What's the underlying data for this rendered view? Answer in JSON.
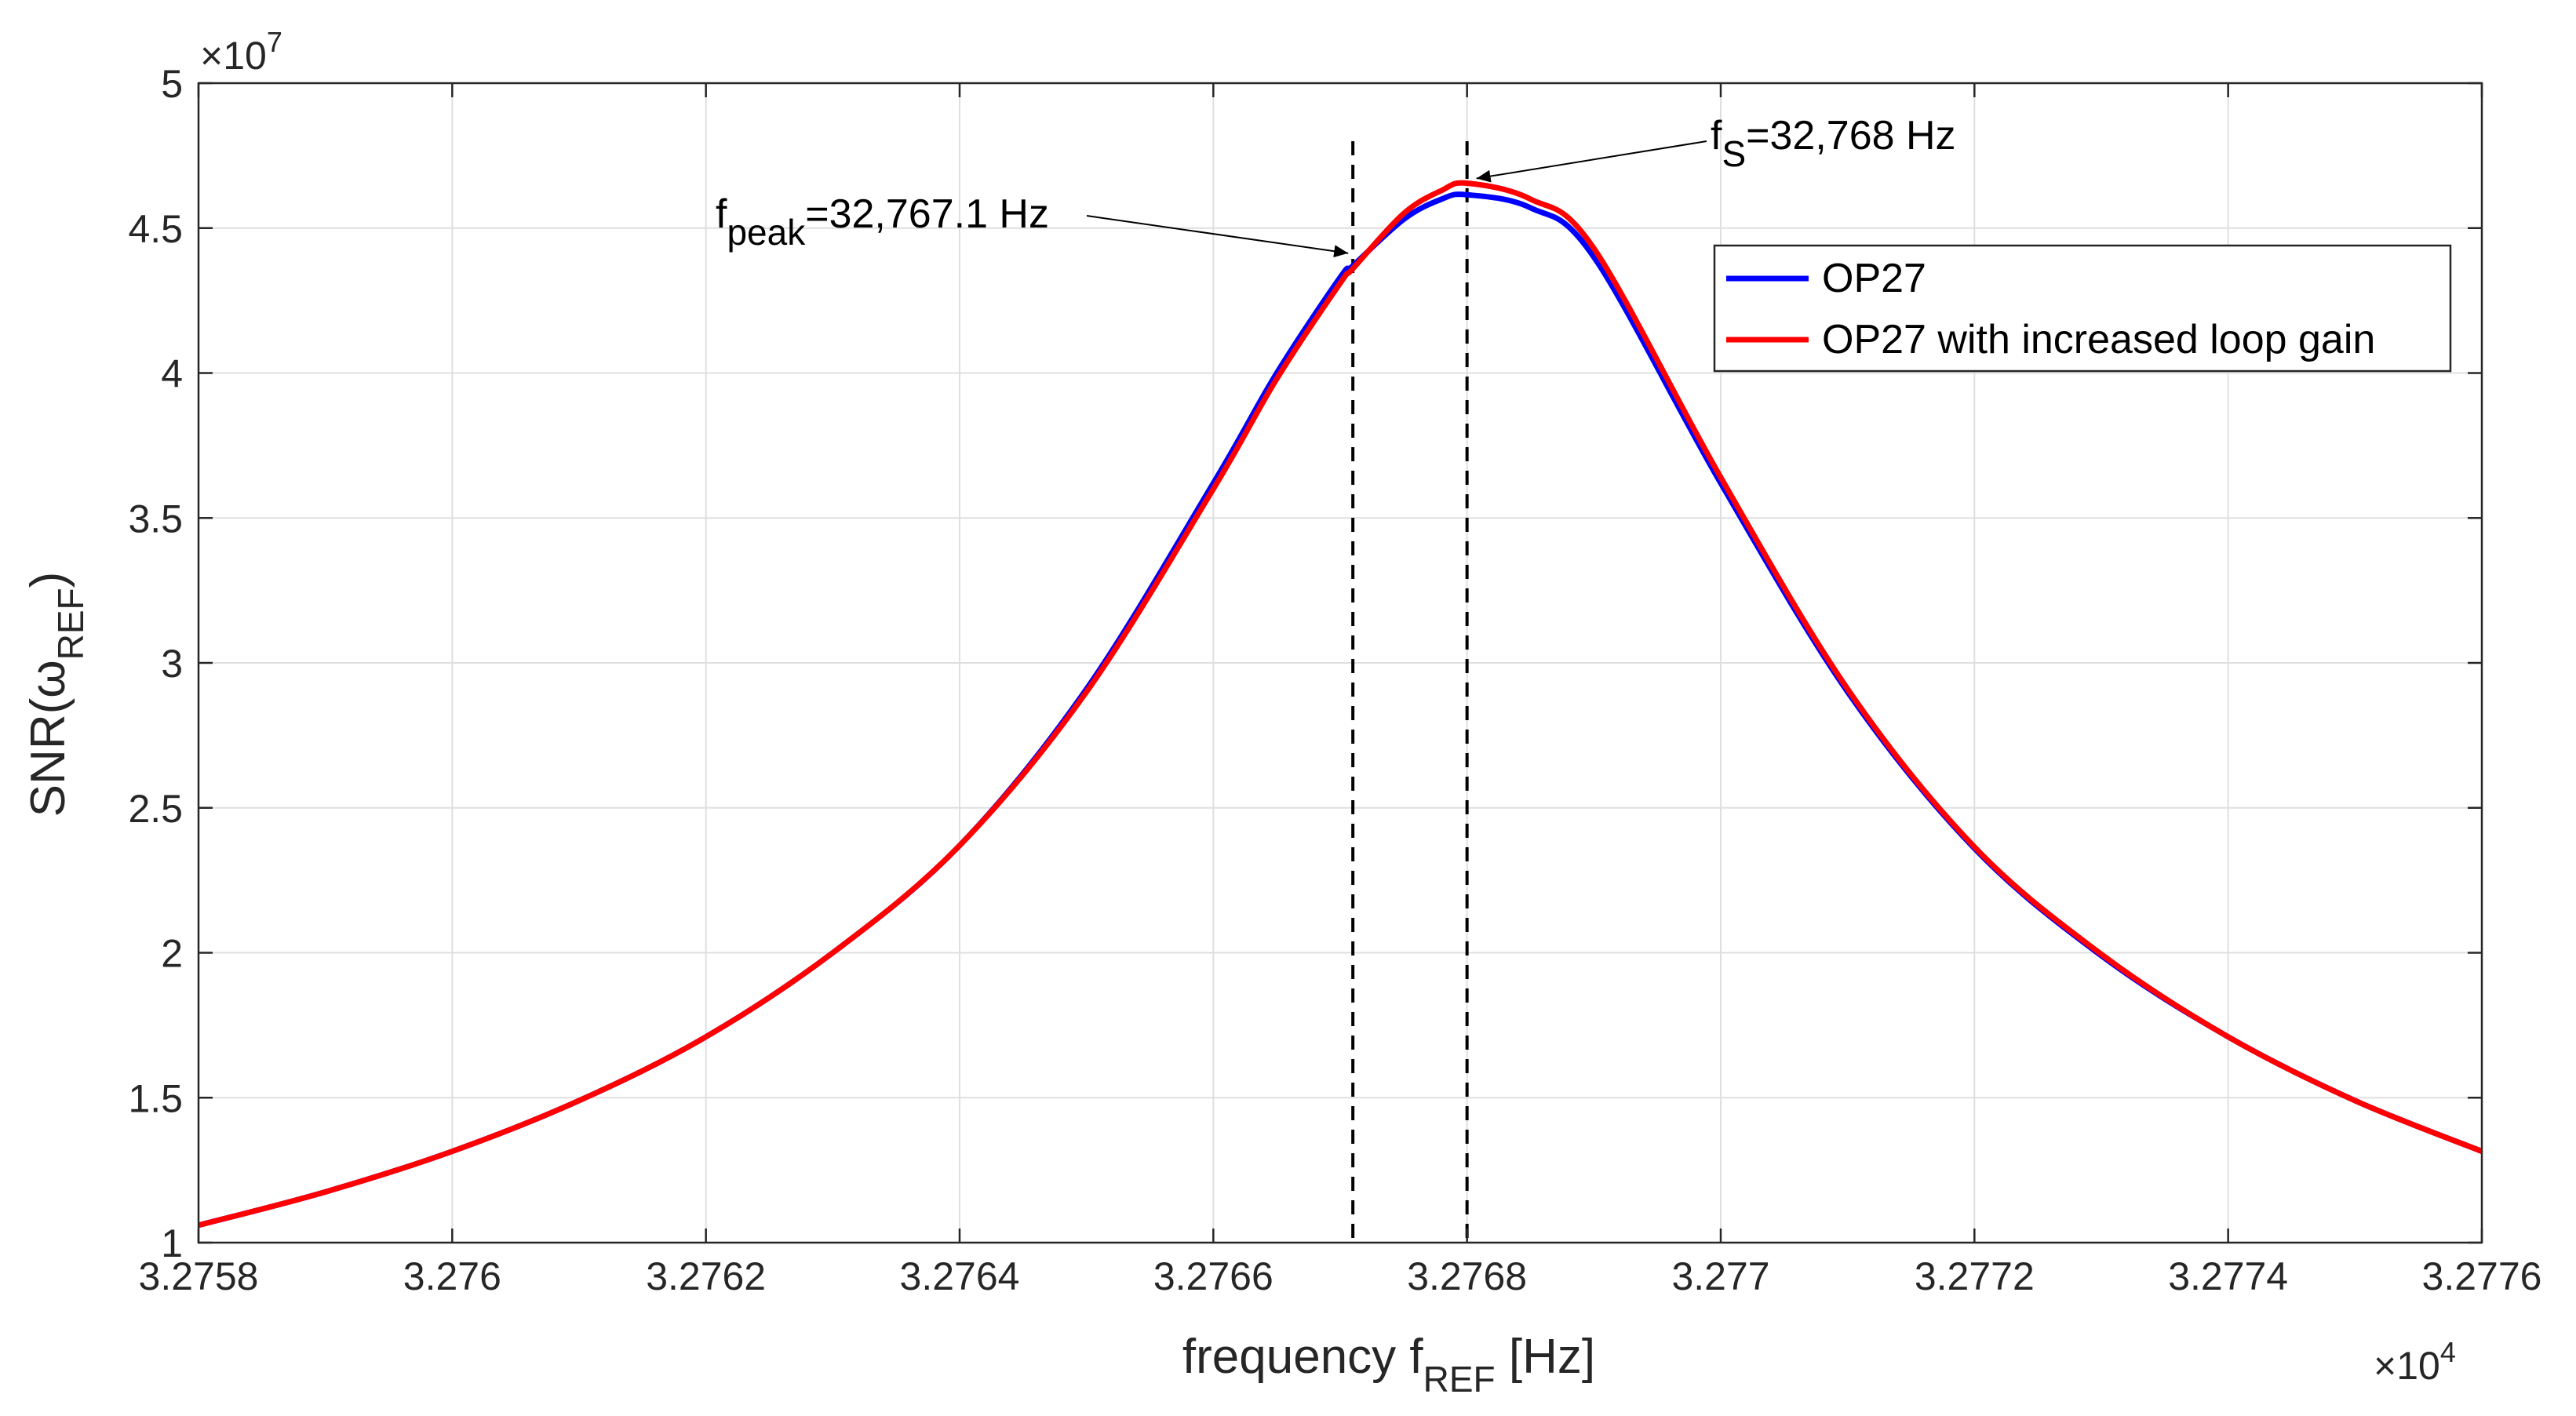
{
  "chart_data": {
    "type": "line",
    "xlabel": {
      "main": "frequency f",
      "sub": "REF",
      "unit": " [Hz]"
    },
    "ylabel": {
      "main": "SNR(ω",
      "sub": "REF",
      "close": ")"
    },
    "x_exponent": {
      "prefix": "×10",
      "power": "4"
    },
    "y_exponent": {
      "prefix": "×10",
      "power": "7"
    },
    "xlim": [
      3.2758,
      3.2776
    ],
    "ylim": [
      1,
      5
    ],
    "x_ticks": [
      3.2758,
      3.276,
      3.2762,
      3.2764,
      3.2766,
      3.2768,
      3.277,
      3.2772,
      3.2774,
      3.2776
    ],
    "x_tick_labels": [
      "3.2758",
      "3.276",
      "3.2762",
      "3.2764",
      "3.2766",
      "3.2768",
      "3.277",
      "3.2772",
      "3.2774",
      "3.2776"
    ],
    "y_ticks": [
      1,
      1.5,
      2,
      2.5,
      3,
      3.5,
      4,
      4.5,
      5
    ],
    "y_tick_labels": [
      "1",
      "1.5",
      "2",
      "2.5",
      "3",
      "3.5",
      "4",
      "4.5",
      "5"
    ],
    "grid": true,
    "legend_position": "upper-right",
    "series": [
      {
        "name": "OP27",
        "color": "#0000ff",
        "x": [
          3.2758,
          3.2759,
          3.276,
          3.2761,
          3.2762,
          3.2763,
          3.2764,
          3.2765,
          3.2766,
          3.27665,
          3.2767,
          3.27671,
          3.27675,
          3.27678,
          3.2768,
          3.27685,
          3.2769,
          3.277,
          3.2771,
          3.2772,
          3.2773,
          3.2774,
          3.2775,
          3.2776
        ],
        "values": [
          1.06,
          1.175,
          1.315,
          1.49,
          1.71,
          2.0,
          2.37,
          2.91,
          3.62,
          4.0,
          4.33,
          4.37,
          4.53,
          4.6,
          4.615,
          4.57,
          4.4,
          3.62,
          2.9,
          2.36,
          1.99,
          1.71,
          1.49,
          1.315
        ]
      },
      {
        "name": "OP27 with increased loop gain",
        "color": "#ff0000",
        "x": [
          3.2758,
          3.2759,
          3.276,
          3.2761,
          3.2762,
          3.2763,
          3.2764,
          3.2765,
          3.2766,
          3.27665,
          3.2767,
          3.27671,
          3.27675,
          3.27678,
          3.2768,
          3.27685,
          3.2769,
          3.277,
          3.2771,
          3.2772,
          3.2773,
          3.2774,
          3.2775,
          3.2776
        ],
        "values": [
          1.06,
          1.175,
          1.315,
          1.49,
          1.71,
          2.0,
          2.37,
          2.9,
          3.6,
          3.98,
          4.31,
          4.36,
          4.55,
          4.63,
          4.655,
          4.6,
          4.43,
          3.64,
          2.91,
          2.365,
          1.995,
          1.71,
          1.49,
          1.315
        ]
      }
    ],
    "vertical_lines": [
      {
        "x": 3.27671,
        "style": "dashed",
        "color": "#000000"
      },
      {
        "x": 3.2768,
        "style": "dashed",
        "color": "#000000"
      }
    ],
    "annotations": [
      {
        "label": "f",
        "sub": "peak",
        "rest": "=32,767.1 Hz",
        "target_x": 3.27671,
        "target_y": 4.37
      },
      {
        "label": "f",
        "sub": "S",
        "rest": "=32,768 Hz",
        "target_x": 3.2768,
        "target_y": 4.655
      }
    ]
  }
}
